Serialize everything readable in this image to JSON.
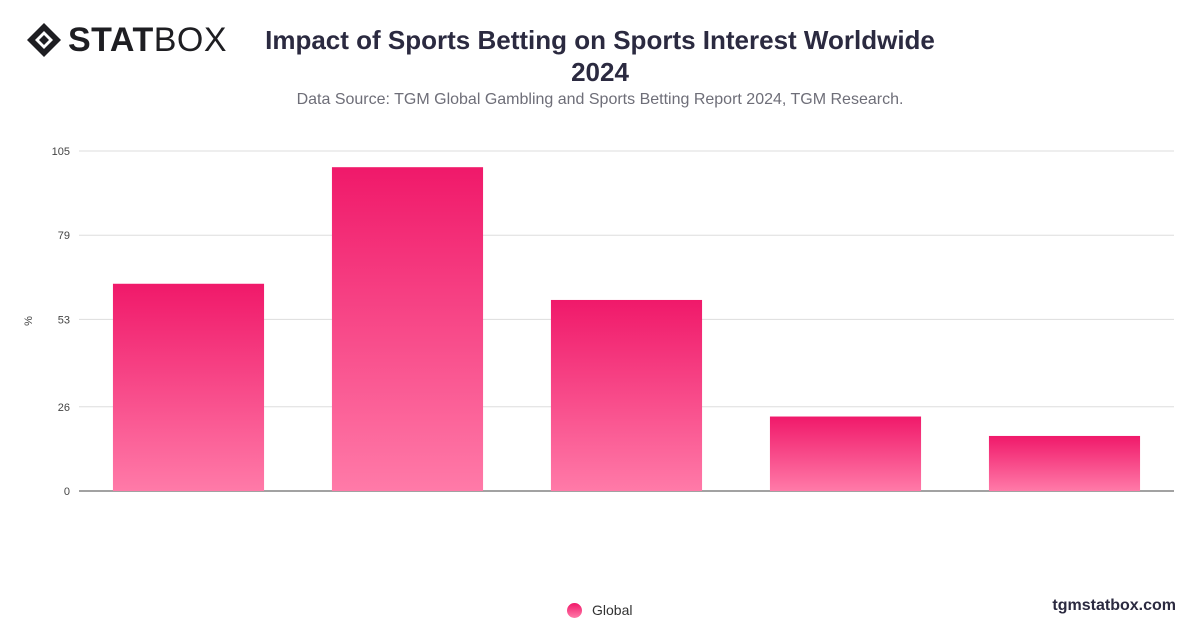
{
  "brand": {
    "logo_bold": "STAT",
    "logo_light": "BOX",
    "site": "tgmstatbox.com"
  },
  "header": {
    "title_line1": "Impact of Sports Betting on Sports Interest Worldwide",
    "title_line2": "2024",
    "subtitle": "Data Source: TGM Global Gambling and Sports Betting Report 2024, TGM Research."
  },
  "chart_data": {
    "type": "bar",
    "ylabel": "%",
    "ylim": [
      0,
      105
    ],
    "yticks": [
      0,
      26,
      53,
      79,
      105
    ],
    "grid": true,
    "legend_position": "bottom",
    "colors": {
      "bar_top": "#f0196a",
      "bar_bottom": "#ff7aa8"
    },
    "categories": [
      "",
      "",
      "",
      "",
      ""
    ],
    "series": [
      {
        "name": "Global",
        "values": [
          64,
          100,
          59,
          23,
          17
        ]
      }
    ]
  }
}
